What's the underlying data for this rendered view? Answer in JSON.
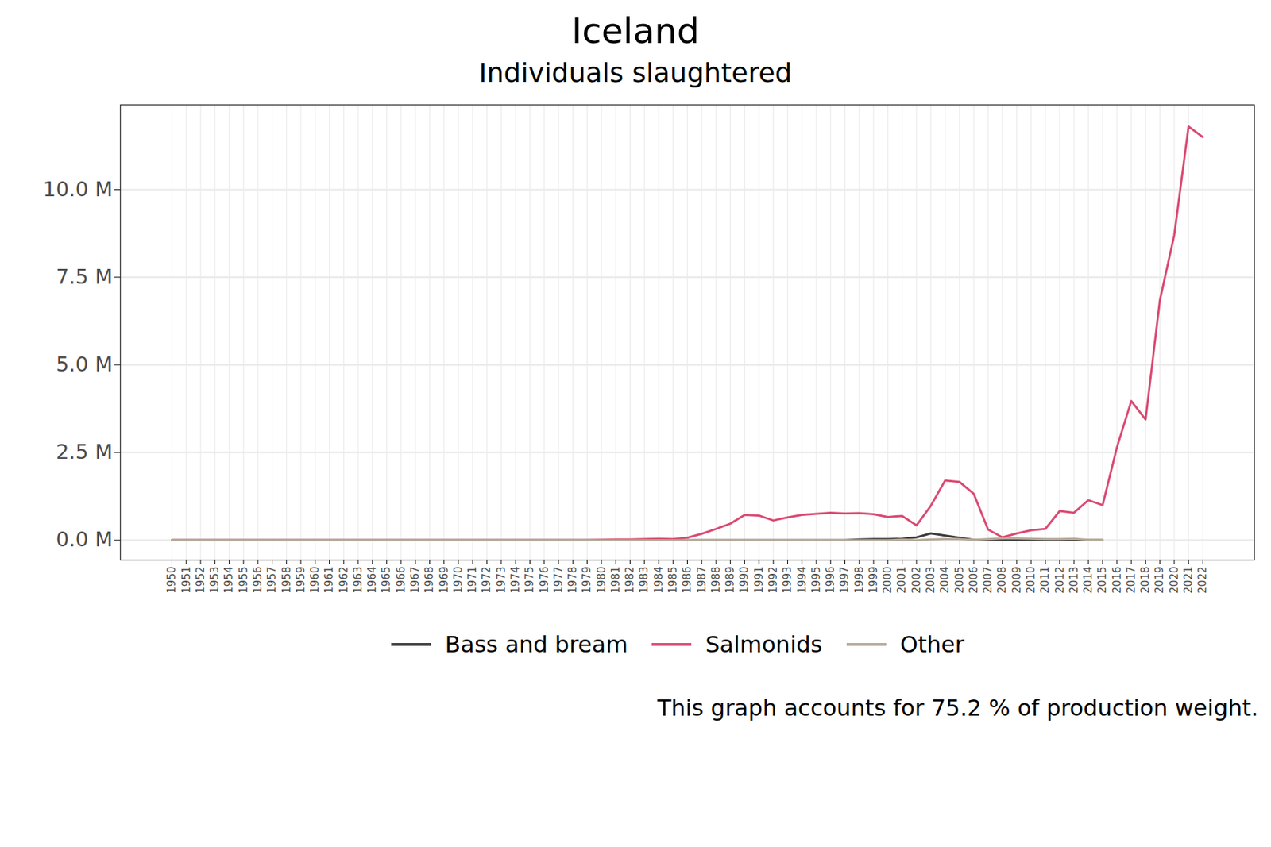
{
  "chart_data": {
    "type": "line",
    "title": "Iceland",
    "subtitle": "Individuals slaughtered",
    "caption": "This graph accounts for 75.2 % of production weight.",
    "grid": true,
    "legend": "bottom",
    "x": [
      1950,
      1951,
      1952,
      1953,
      1954,
      1955,
      1956,
      1957,
      1958,
      1959,
      1960,
      1961,
      1962,
      1963,
      1964,
      1965,
      1966,
      1967,
      1968,
      1969,
      1970,
      1971,
      1972,
      1973,
      1974,
      1975,
      1976,
      1977,
      1978,
      1979,
      1980,
      1981,
      1982,
      1983,
      1984,
      1985,
      1986,
      1987,
      1988,
      1989,
      1990,
      1991,
      1992,
      1993,
      1994,
      1995,
      1996,
      1997,
      1998,
      1999,
      2000,
      2001,
      2002,
      2003,
      2004,
      2005,
      2006,
      2007,
      2008,
      2009,
      2010,
      2011,
      2012,
      2013,
      2014,
      2015,
      2016,
      2017,
      2018,
      2019,
      2020,
      2021,
      2022
    ],
    "xlim": [
      1946.4,
      2025.6
    ],
    "xticks": [
      1950,
      1951,
      1952,
      1953,
      1954,
      1955,
      1956,
      1957,
      1958,
      1959,
      1960,
      1961,
      1962,
      1963,
      1964,
      1965,
      1966,
      1967,
      1968,
      1969,
      1970,
      1971,
      1972,
      1973,
      1974,
      1975,
      1976,
      1977,
      1978,
      1979,
      1980,
      1981,
      1982,
      1983,
      1984,
      1985,
      1986,
      1987,
      1988,
      1989,
      1990,
      1991,
      1992,
      1993,
      1994,
      1995,
      1996,
      1997,
      1998,
      1999,
      2000,
      2001,
      2002,
      2003,
      2004,
      2005,
      2006,
      2007,
      2008,
      2009,
      2010,
      2011,
      2012,
      2013,
      2014,
      2015,
      2016,
      2017,
      2018,
      2019,
      2020,
      2021,
      2022
    ],
    "ylim": [
      -570000,
      12420000
    ],
    "yticks": [
      {
        "value": 0,
        "label": "0.0 M"
      },
      {
        "value": 2500000,
        "label": "2.5 M"
      },
      {
        "value": 5000000,
        "label": "5.0 M"
      },
      {
        "value": 7500000,
        "label": "7.5 M"
      },
      {
        "value": 10000000,
        "label": "10.0 M"
      }
    ],
    "series": [
      {
        "name": "Bass and bream",
        "color": "#3d3d3d",
        "values": [
          0,
          0,
          0,
          0,
          0,
          0,
          0,
          0,
          0,
          0,
          0,
          0,
          0,
          0,
          0,
          0,
          0,
          0,
          0,
          0,
          0,
          0,
          0,
          0,
          0,
          0,
          0,
          0,
          0,
          0,
          0,
          0,
          0,
          0,
          0,
          0,
          0,
          0,
          0,
          0,
          0,
          0,
          0,
          0,
          0,
          0,
          0,
          0,
          20000,
          30000,
          30000,
          40000,
          80000,
          190000,
          130000,
          70000,
          10000,
          0,
          0,
          0,
          0,
          0,
          0,
          0,
          0,
          0,
          null,
          null,
          null,
          null,
          null,
          null,
          null
        ]
      },
      {
        "name": "Salmonids",
        "color": "#da4a72",
        "values": [
          0,
          0,
          0,
          0,
          0,
          0,
          0,
          0,
          0,
          0,
          0,
          0,
          0,
          0,
          0,
          0,
          0,
          0,
          0,
          0,
          0,
          0,
          0,
          0,
          0,
          0,
          0,
          0,
          0,
          0,
          10000,
          20000,
          20000,
          30000,
          40000,
          30000,
          70000,
          180000,
          320000,
          470000,
          720000,
          700000,
          560000,
          650000,
          720000,
          750000,
          780000,
          760000,
          770000,
          740000,
          660000,
          690000,
          420000,
          980000,
          1700000,
          1660000,
          1320000,
          300000,
          80000,
          190000,
          280000,
          320000,
          830000,
          780000,
          1140000,
          1000000,
          2650000,
          3970000,
          3440000,
          6850000,
          8700000,
          11800000,
          11500000
        ]
      },
      {
        "name": "Other",
        "color": "#b5a898",
        "values": [
          0,
          0,
          0,
          0,
          0,
          0,
          0,
          0,
          0,
          0,
          0,
          0,
          0,
          0,
          0,
          0,
          0,
          0,
          0,
          0,
          0,
          0,
          0,
          0,
          0,
          0,
          0,
          0,
          0,
          0,
          0,
          0,
          0,
          0,
          0,
          0,
          0,
          0,
          0,
          0,
          0,
          0,
          0,
          0,
          0,
          0,
          0,
          0,
          0,
          0,
          0,
          20000,
          0,
          20000,
          30000,
          30000,
          10000,
          30000,
          50000,
          50000,
          40000,
          30000,
          30000,
          40000,
          10000,
          10000,
          null,
          null,
          null,
          null,
          null,
          null,
          null
        ]
      }
    ]
  }
}
